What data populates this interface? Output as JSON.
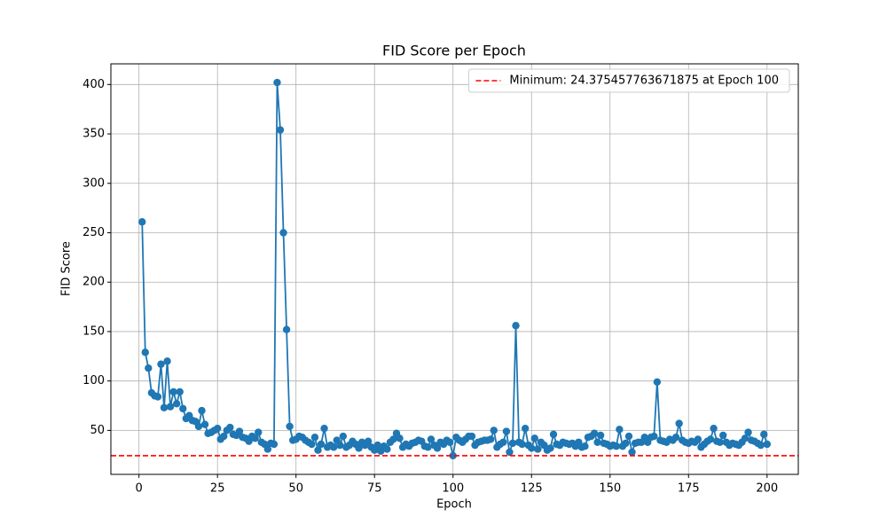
{
  "chart_data": {
    "type": "line",
    "title": "FID Score per Epoch",
    "x_label": "Epoch",
    "y_label": "FID Score",
    "x": [
      1,
      2,
      3,
      4,
      5,
      6,
      7,
      8,
      9,
      10,
      11,
      12,
      13,
      14,
      15,
      16,
      17,
      18,
      19,
      20,
      21,
      22,
      23,
      24,
      25,
      26,
      27,
      28,
      29,
      30,
      31,
      32,
      33,
      34,
      35,
      36,
      37,
      38,
      39,
      40,
      41,
      42,
      43,
      44,
      45,
      46,
      47,
      48,
      49,
      50,
      51,
      52,
      53,
      54,
      55,
      56,
      57,
      58,
      59,
      60,
      61,
      62,
      63,
      64,
      65,
      66,
      67,
      68,
      69,
      70,
      71,
      72,
      73,
      74,
      75,
      76,
      77,
      78,
      79,
      80,
      81,
      82,
      83,
      84,
      85,
      86,
      87,
      88,
      89,
      90,
      91,
      92,
      93,
      94,
      95,
      96,
      97,
      98,
      99,
      100,
      101,
      102,
      103,
      104,
      105,
      106,
      107,
      108,
      109,
      110,
      111,
      112,
      113,
      114,
      115,
      116,
      117,
      118,
      119,
      120,
      121,
      122,
      123,
      124,
      125,
      126,
      127,
      128,
      129,
      130,
      131,
      132,
      133,
      134,
      135,
      136,
      137,
      138,
      139,
      140,
      141,
      142,
      143,
      144,
      145,
      146,
      147,
      148,
      149,
      150,
      151,
      152,
      153,
      154,
      155,
      156,
      157,
      158,
      159,
      160,
      161,
      162,
      163,
      164,
      165,
      166,
      167,
      168,
      169,
      170,
      171,
      172,
      173,
      174,
      175,
      176,
      177,
      178,
      179,
      180,
      181,
      182,
      183,
      184,
      185,
      186,
      187,
      188,
      189,
      190,
      191,
      192,
      193,
      194,
      195,
      196,
      197,
      198,
      199,
      200
    ],
    "series": [
      {
        "color": "#1f77b4",
        "values": [
          261,
          129,
          113,
          88,
          85,
          84,
          117,
          73,
          120,
          74,
          89,
          77,
          89,
          72,
          62,
          65,
          60,
          59,
          54,
          70,
          56,
          47,
          48,
          50,
          52,
          41,
          44,
          50,
          53,
          46,
          45,
          49,
          43,
          42,
          39,
          44,
          42,
          48,
          38,
          36,
          31,
          37,
          36,
          402,
          354,
          250,
          152,
          54,
          40,
          41,
          44,
          43,
          40,
          38,
          36,
          43,
          30,
          36,
          52,
          33,
          35,
          33,
          40,
          35,
          44,
          33,
          35,
          39,
          36,
          32,
          38,
          35,
          39,
          33,
          30,
          35,
          29,
          34,
          31,
          38,
          41,
          47,
          42,
          33,
          36,
          34,
          37,
          38,
          40,
          39,
          34,
          33,
          41,
          35,
          32,
          38,
          36,
          40,
          38,
          24.375457763671875,
          43,
          40,
          38,
          41,
          44,
          44,
          35,
          38,
          39,
          40,
          40,
          41,
          50,
          33,
          36,
          38,
          49,
          28,
          37,
          156,
          38,
          36,
          52,
          35,
          32,
          42,
          31,
          38,
          35,
          30,
          32,
          46,
          36,
          35,
          38,
          37,
          36,
          37,
          34,
          38,
          33,
          34,
          43,
          44,
          47,
          38,
          45,
          37,
          36,
          34,
          35,
          34,
          51,
          34,
          37,
          44,
          28,
          37,
          38,
          38,
          43,
          38,
          43,
          44,
          99,
          40,
          39,
          38,
          41,
          40,
          43,
          57,
          40,
          38,
          37,
          39,
          38,
          41,
          33,
          36,
          39,
          41,
          52,
          39,
          38,
          45,
          38,
          35,
          37,
          36,
          35,
          38,
          42,
          48,
          40,
          39,
          37,
          35,
          46,
          36
        ]
      }
    ],
    "reference_line": {
      "label": "Minimum: 24.375457763671875 at Epoch 100",
      "value": 24.375457763671875,
      "color": "#ff0000",
      "style": "dashed"
    },
    "xlim": [
      -8.95,
      209.95
    ],
    "ylim": [
      5.5,
      420.9
    ],
    "xticks": [
      0,
      25,
      50,
      75,
      100,
      125,
      150,
      175,
      200
    ],
    "yticks": [
      50,
      100,
      150,
      200,
      250,
      300,
      350,
      400
    ],
    "grid": true,
    "legend": "upper right"
  }
}
